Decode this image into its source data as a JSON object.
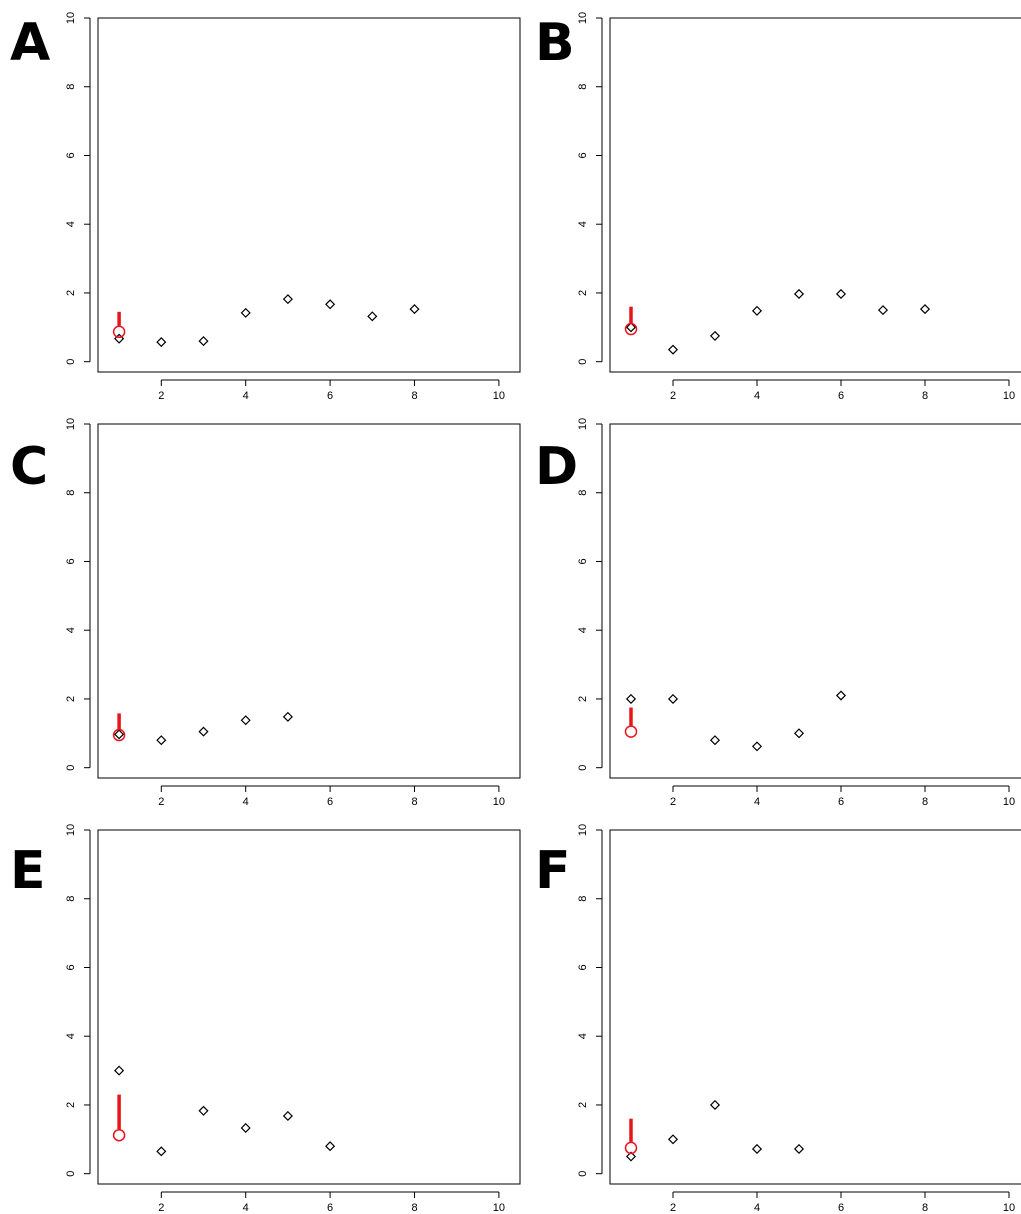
{
  "colors": {
    "axis": "#000000",
    "point": "#000000",
    "highlight": "#e8141c"
  },
  "chart_data": [
    {
      "panel": "A",
      "type": "scatter",
      "xlim": [
        0.5,
        10.5
      ],
      "ylim": [
        -0.3,
        10
      ],
      "xticks": [
        2,
        4,
        6,
        8,
        10
      ],
      "yticks": [
        0,
        2,
        4,
        6,
        8,
        10
      ],
      "points": [
        {
          "x": 1,
          "y": 0.67
        },
        {
          "x": 2,
          "y": 0.57
        },
        {
          "x": 3,
          "y": 0.6
        },
        {
          "x": 4,
          "y": 1.42
        },
        {
          "x": 5,
          "y": 1.82
        },
        {
          "x": 6,
          "y": 1.67
        },
        {
          "x": 7,
          "y": 1.32
        },
        {
          "x": 8,
          "y": 1.53
        }
      ],
      "highlight": {
        "x": 1,
        "y": 0.87,
        "upper": 1.45
      }
    },
    {
      "panel": "B",
      "type": "scatter",
      "xlim": [
        0.5,
        10.5
      ],
      "ylim": [
        -0.3,
        10
      ],
      "xticks": [
        2,
        4,
        6,
        8,
        10
      ],
      "yticks": [
        0,
        2,
        4,
        6,
        8,
        10
      ],
      "points": [
        {
          "x": 1,
          "y": 1.0
        },
        {
          "x": 2,
          "y": 0.35
        },
        {
          "x": 3,
          "y": 0.75
        },
        {
          "x": 4,
          "y": 1.48
        },
        {
          "x": 5,
          "y": 1.97
        },
        {
          "x": 6,
          "y": 1.97
        },
        {
          "x": 7,
          "y": 1.5
        },
        {
          "x": 8,
          "y": 1.53
        }
      ],
      "highlight": {
        "x": 1,
        "y": 0.95,
        "upper": 1.6
      }
    },
    {
      "panel": "C",
      "type": "scatter",
      "xlim": [
        0.5,
        10.5
      ],
      "ylim": [
        -0.3,
        10
      ],
      "xticks": [
        2,
        4,
        6,
        8,
        10
      ],
      "yticks": [
        0,
        2,
        4,
        6,
        8,
        10
      ],
      "points": [
        {
          "x": 1,
          "y": 0.97
        },
        {
          "x": 2,
          "y": 0.8
        },
        {
          "x": 3,
          "y": 1.05
        },
        {
          "x": 4,
          "y": 1.38
        },
        {
          "x": 5,
          "y": 1.48
        }
      ],
      "highlight": {
        "x": 1,
        "y": 0.95,
        "upper": 1.58
      }
    },
    {
      "panel": "D",
      "type": "scatter",
      "xlim": [
        0.5,
        10.5
      ],
      "ylim": [
        -0.3,
        10
      ],
      "xticks": [
        2,
        4,
        6,
        8,
        10
      ],
      "yticks": [
        0,
        2,
        4,
        6,
        8,
        10
      ],
      "points": [
        {
          "x": 1,
          "y": 2.0
        },
        {
          "x": 2,
          "y": 2.0
        },
        {
          "x": 3,
          "y": 0.8
        },
        {
          "x": 4,
          "y": 0.62
        },
        {
          "x": 5,
          "y": 1.0
        },
        {
          "x": 6,
          "y": 2.1
        }
      ],
      "highlight": {
        "x": 1,
        "y": 1.05,
        "upper": 1.75
      }
    },
    {
      "panel": "E",
      "type": "scatter",
      "xlim": [
        0.5,
        10.5
      ],
      "ylim": [
        -0.3,
        10
      ],
      "xticks": [
        2,
        4,
        6,
        8,
        10
      ],
      "yticks": [
        0,
        2,
        4,
        6,
        8,
        10
      ],
      "points": [
        {
          "x": 1,
          "y": 3.0
        },
        {
          "x": 2,
          "y": 0.65
        },
        {
          "x": 3,
          "y": 1.83
        },
        {
          "x": 4,
          "y": 1.33
        },
        {
          "x": 5,
          "y": 1.68
        },
        {
          "x": 6,
          "y": 0.8
        }
      ],
      "highlight": {
        "x": 1,
        "y": 1.12,
        "upper": 2.3
      }
    },
    {
      "panel": "F",
      "type": "scatter",
      "xlim": [
        0.5,
        10.5
      ],
      "ylim": [
        -0.3,
        10
      ],
      "xticks": [
        2,
        4,
        6,
        8,
        10
      ],
      "yticks": [
        0,
        2,
        4,
        6,
        8,
        10
      ],
      "points": [
        {
          "x": 1,
          "y": 0.5
        },
        {
          "x": 2,
          "y": 1.0
        },
        {
          "x": 3,
          "y": 2.0
        },
        {
          "x": 4,
          "y": 0.72
        },
        {
          "x": 5,
          "y": 0.72
        }
      ],
      "highlight": {
        "x": 1,
        "y": 0.75,
        "upper": 1.6
      }
    }
  ]
}
